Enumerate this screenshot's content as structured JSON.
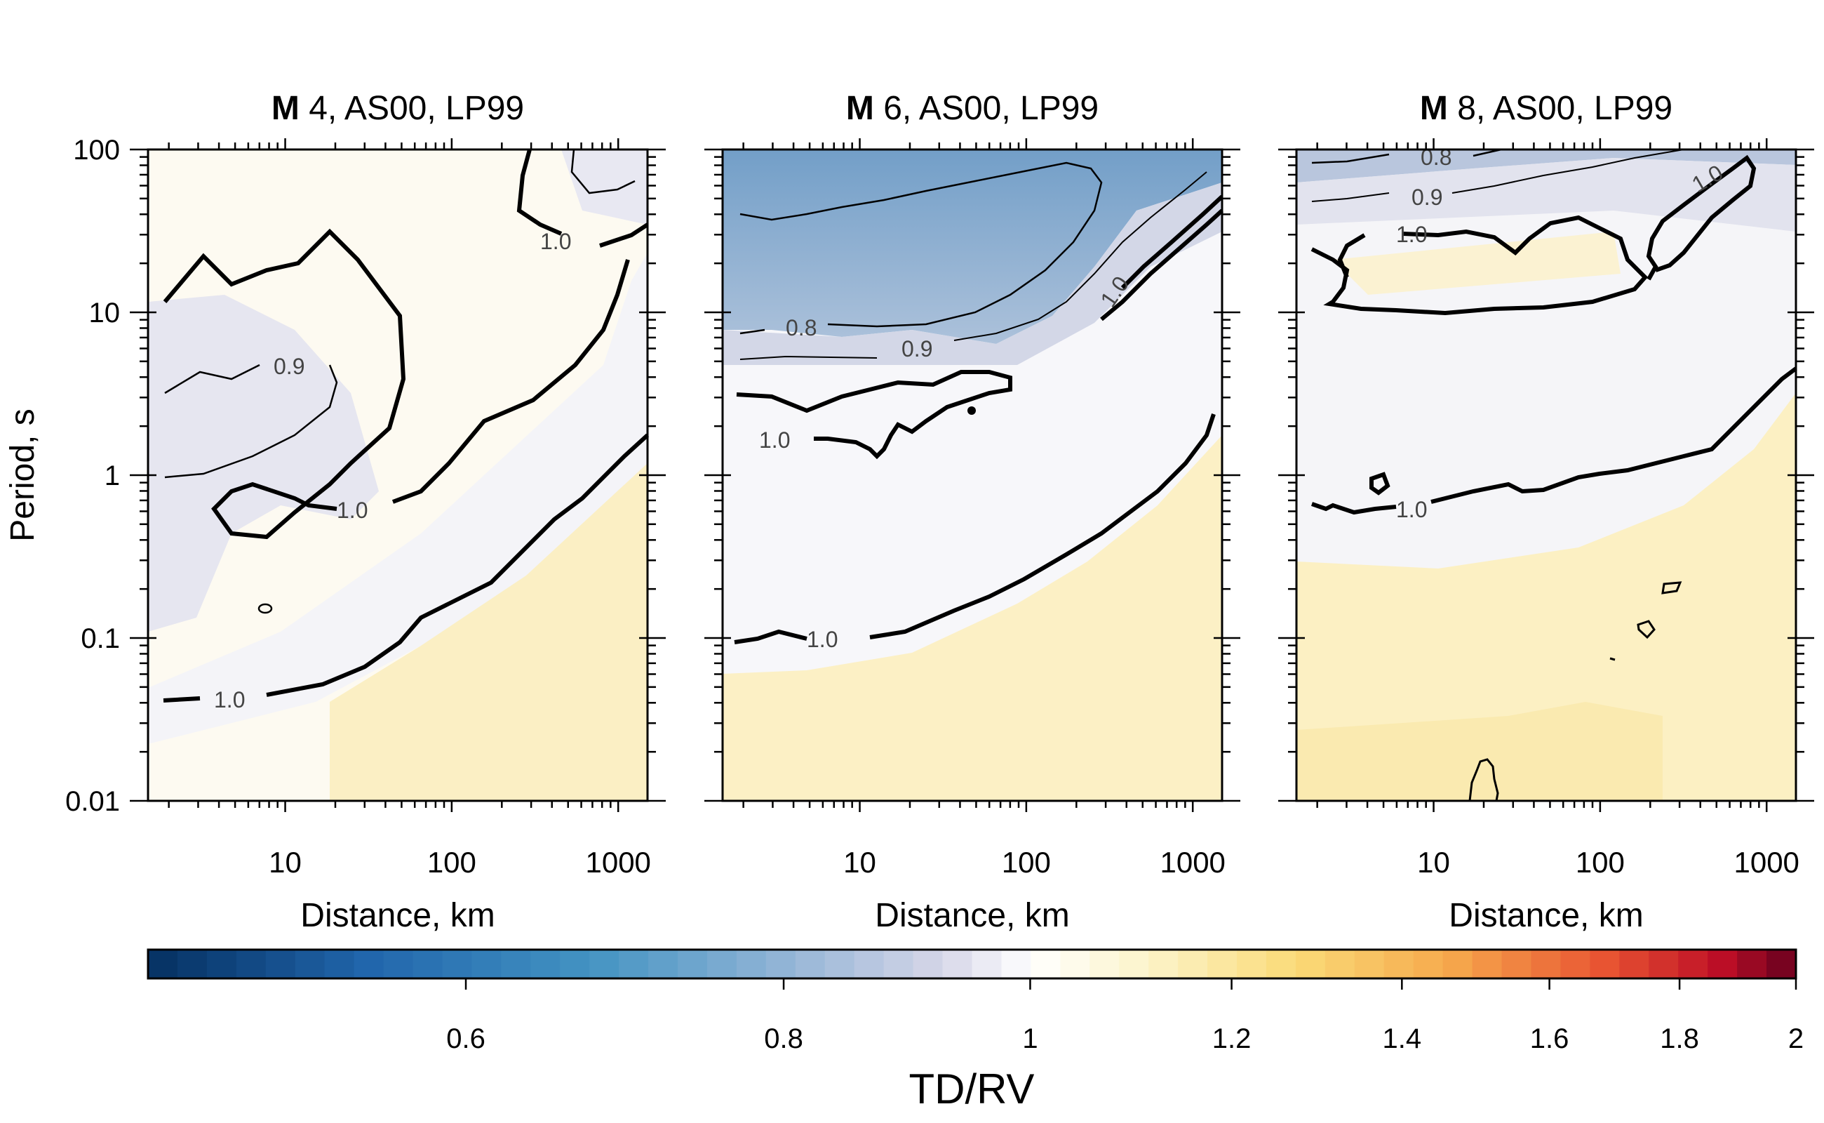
{
  "chart_data": [
    {
      "type": "heatmap",
      "title": "4, AS00, LP99",
      "title_prefix": "M",
      "xlabel": "Distance, km",
      "ylabel": "Period, s",
      "x_scale": "log",
      "y_scale": "log",
      "xlim": [
        1.5,
        1500
      ],
      "ylim": [
        0.01,
        100
      ],
      "x_ticks": [
        "10",
        "100",
        "1000"
      ],
      "y_ticks": [
        "0.01",
        "0.1",
        "1",
        "10",
        "100"
      ],
      "contours": [
        {
          "level": "1.0",
          "label_at": [
            100.0,
            0.06
          ],
          "shown_label": "1.0"
        },
        {
          "level": "1.0",
          "shown_label": "1.0"
        },
        {
          "level": "0.9",
          "shown_label": "0.9"
        },
        {
          "level": "1.0",
          "shown_label": "1.0"
        }
      ],
      "contour_labels": [
        "1.0",
        "0.9",
        "1.0",
        "1.0"
      ]
    },
    {
      "type": "heatmap",
      "title": "6, AS00, LP99",
      "title_prefix": "M",
      "xlabel": "Distance, km",
      "ylabel": "",
      "x_scale": "log",
      "y_scale": "log",
      "xlim": [
        1.5,
        1500
      ],
      "ylim": [
        0.01,
        100
      ],
      "x_ticks": [
        "10",
        "100",
        "1000"
      ],
      "contour_labels": [
        "0.8",
        "0.9",
        "1.0",
        "1.0",
        "1.0"
      ]
    },
    {
      "type": "heatmap",
      "title": "8, AS00, LP99",
      "title_prefix": "M",
      "xlabel": "Distance, km",
      "ylabel": "",
      "x_scale": "log",
      "y_scale": "log",
      "xlim": [
        1.5,
        1500
      ],
      "ylim": [
        0.01,
        100
      ],
      "x_ticks": [
        "10",
        "100",
        "1000"
      ],
      "contour_labels": [
        "0.8",
        "0.9",
        "1.0",
        "1.0",
        "1.0"
      ]
    }
  ],
  "colorbar": {
    "label": "TD/RV",
    "range": [
      0.45,
      2
    ],
    "ticks": [
      "0.6",
      "0.8",
      "1",
      "1.2",
      "1.4",
      "1.6",
      "1.8",
      "2"
    ],
    "tick_values": [
      0.6,
      0.8,
      1,
      1.2,
      1.4,
      1.6,
      1.8,
      2
    ],
    "low_color": "#053061",
    "mid_color": "#ffffff",
    "high_color": "#67001f"
  }
}
